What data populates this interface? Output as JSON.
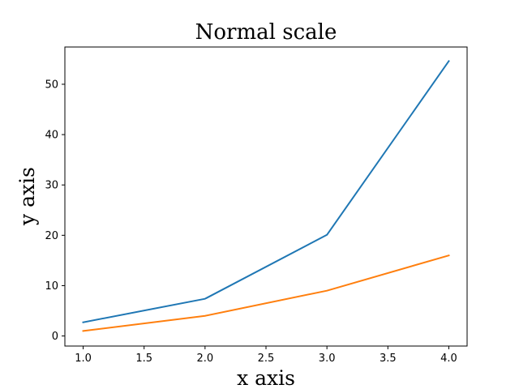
{
  "chart_data": {
    "type": "line",
    "title": "Normal scale",
    "xlabel": "x axis",
    "ylabel": "y axis",
    "xlim": [
      0.85,
      4.15
    ],
    "ylim": [
      -2.0,
      57.4
    ],
    "xticks": [
      1.0,
      1.5,
      2.0,
      2.5,
      3.0,
      3.5,
      4.0
    ],
    "xtick_labels": [
      "1.0",
      "1.5",
      "2.0",
      "2.5",
      "3.0",
      "3.5",
      "4.0"
    ],
    "yticks": [
      0,
      10,
      20,
      30,
      40,
      50
    ],
    "ytick_labels": [
      "0",
      "10",
      "20",
      "30",
      "40",
      "50"
    ],
    "grid": false,
    "x": [
      1,
      2,
      3,
      4
    ],
    "series": [
      {
        "values": [
          2.718,
          7.389,
          20.086,
          54.598
        ],
        "color": "#1f77b4"
      },
      {
        "values": [
          1,
          4,
          9,
          16
        ],
        "color": "#ff7f0e"
      }
    ]
  }
}
